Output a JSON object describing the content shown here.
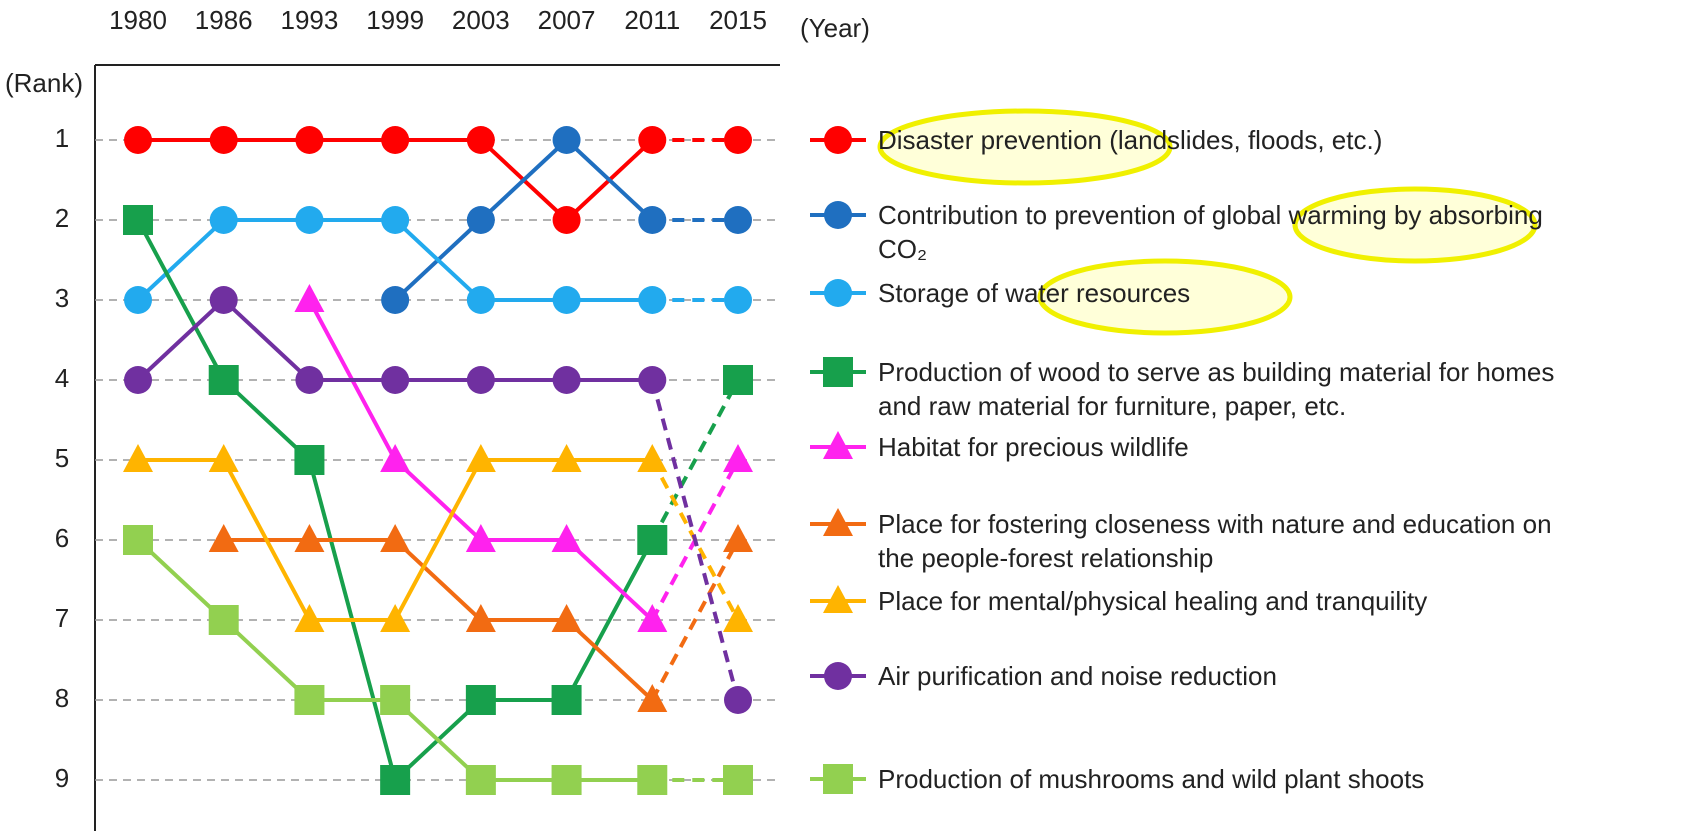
{
  "chart_data": {
    "type": "line",
    "x_label": "(Year)",
    "y_label": "(Rank)",
    "categories": [
      "1980",
      "1986",
      "1993",
      "1999",
      "2003",
      "2007",
      "2011",
      "2015"
    ],
    "ylim": [
      1,
      9
    ],
    "yticks": [
      1,
      2,
      3,
      4,
      5,
      6,
      7,
      8,
      9
    ],
    "y_inverted": true,
    "grid": true,
    "series": [
      {
        "name": "Disaster prevention (landslides, floods, etc.)",
        "color": "#ff0000",
        "marker": "circle",
        "values": [
          1,
          1,
          1,
          1,
          1,
          2,
          1,
          1
        ]
      },
      {
        "name": "Contribution to prevention of global warming by absorbing CO₂",
        "color": "#1f6fc0",
        "marker": "circle",
        "values": [
          null,
          null,
          null,
          3,
          2,
          1,
          2,
          2
        ]
      },
      {
        "name": "Storage of water resources",
        "color": "#22aaee",
        "marker": "circle",
        "values": [
          3,
          2,
          2,
          2,
          3,
          3,
          3,
          3
        ]
      },
      {
        "name": "Production of wood to serve as building material for homes and raw material for furniture, paper, etc.",
        "color": "#17a04c",
        "marker": "square",
        "values": [
          2,
          4,
          5,
          9,
          8,
          8,
          6,
          4
        ]
      },
      {
        "name": "Habitat for precious wildlife",
        "color": "#ff22ee",
        "marker": "triangle",
        "values": [
          null,
          null,
          3,
          5,
          6,
          6,
          7,
          5
        ]
      },
      {
        "name": "Place for fostering closeness with nature and education on the people-forest relationship",
        "color": "#f26b12",
        "marker": "triangle",
        "values": [
          null,
          6,
          6,
          6,
          7,
          7,
          8,
          6
        ]
      },
      {
        "name": "Place for mental/physical healing and tranquility",
        "color": "#ffb400",
        "marker": "triangle",
        "values": [
          5,
          5,
          7,
          7,
          5,
          5,
          5,
          7
        ]
      },
      {
        "name": "Air purification and noise reduction",
        "color": "#7030a0",
        "marker": "circle",
        "values": [
          4,
          3,
          4,
          4,
          4,
          4,
          4,
          8
        ]
      },
      {
        "name": "Production of mushrooms and wild plant shoots",
        "color": "#92d050",
        "marker": "square",
        "values": [
          6,
          7,
          8,
          8,
          9,
          9,
          9,
          9
        ]
      }
    ]
  }
}
